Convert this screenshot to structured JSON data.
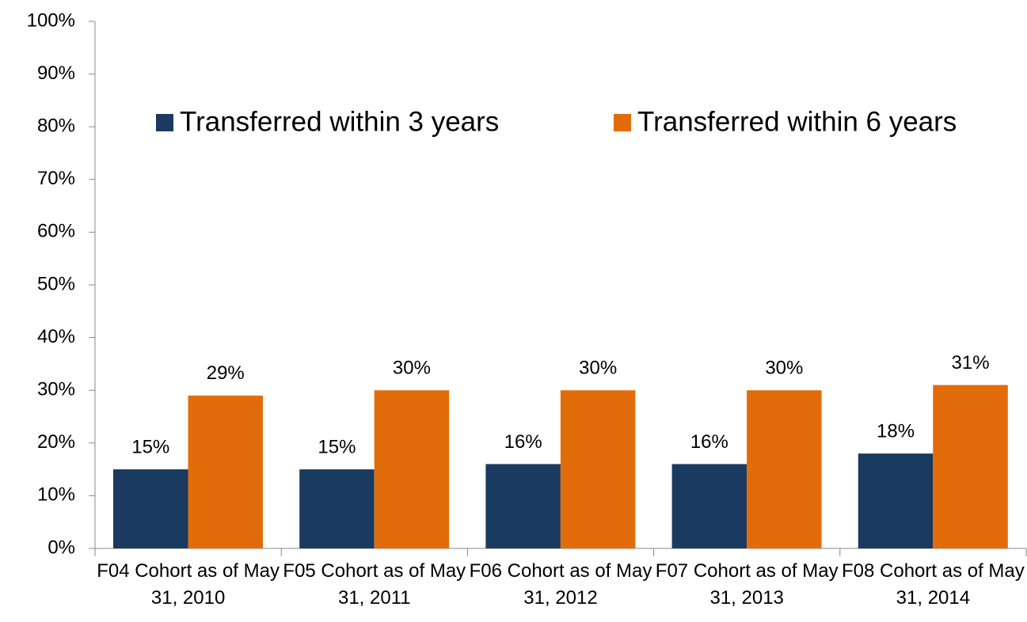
{
  "chart_data": {
    "type": "bar",
    "categories": [
      "F04 Cohort as of May 31, 2010",
      "F05 Cohort as of May 31, 2011",
      "F06 Cohort as of May 31, 2012",
      "F07 Cohort as of May 31, 2013",
      "F08 Cohort as of May 31, 2014"
    ],
    "series": [
      {
        "name": "Transferred within 3 years",
        "color": "#1b3a5f",
        "values": [
          15,
          15,
          16,
          16,
          18
        ],
        "value_labels": [
          "15%",
          "15%",
          "16%",
          "16%",
          "18%"
        ]
      },
      {
        "name": "Transferred within 6 years",
        "color": "#e36c0a",
        "values": [
          29,
          30,
          30,
          30,
          31
        ],
        "value_labels": [
          "29%",
          "30%",
          "30%",
          "30%",
          "31%"
        ]
      }
    ],
    "ylim": [
      0,
      100
    ],
    "yticks": [
      {
        "value": 0,
        "label": "0%"
      },
      {
        "value": 10,
        "label": "10%"
      },
      {
        "value": 20,
        "label": "20%"
      },
      {
        "value": 30,
        "label": "30%"
      },
      {
        "value": 40,
        "label": "40%"
      },
      {
        "value": 50,
        "label": "50%"
      },
      {
        "value": 60,
        "label": "60%"
      },
      {
        "value": 70,
        "label": "70%"
      },
      {
        "value": 80,
        "label": "80%"
      },
      {
        "value": 90,
        "label": "90%"
      },
      {
        "value": 100,
        "label": "100%"
      }
    ],
    "grid": false,
    "legend": "top"
  }
}
